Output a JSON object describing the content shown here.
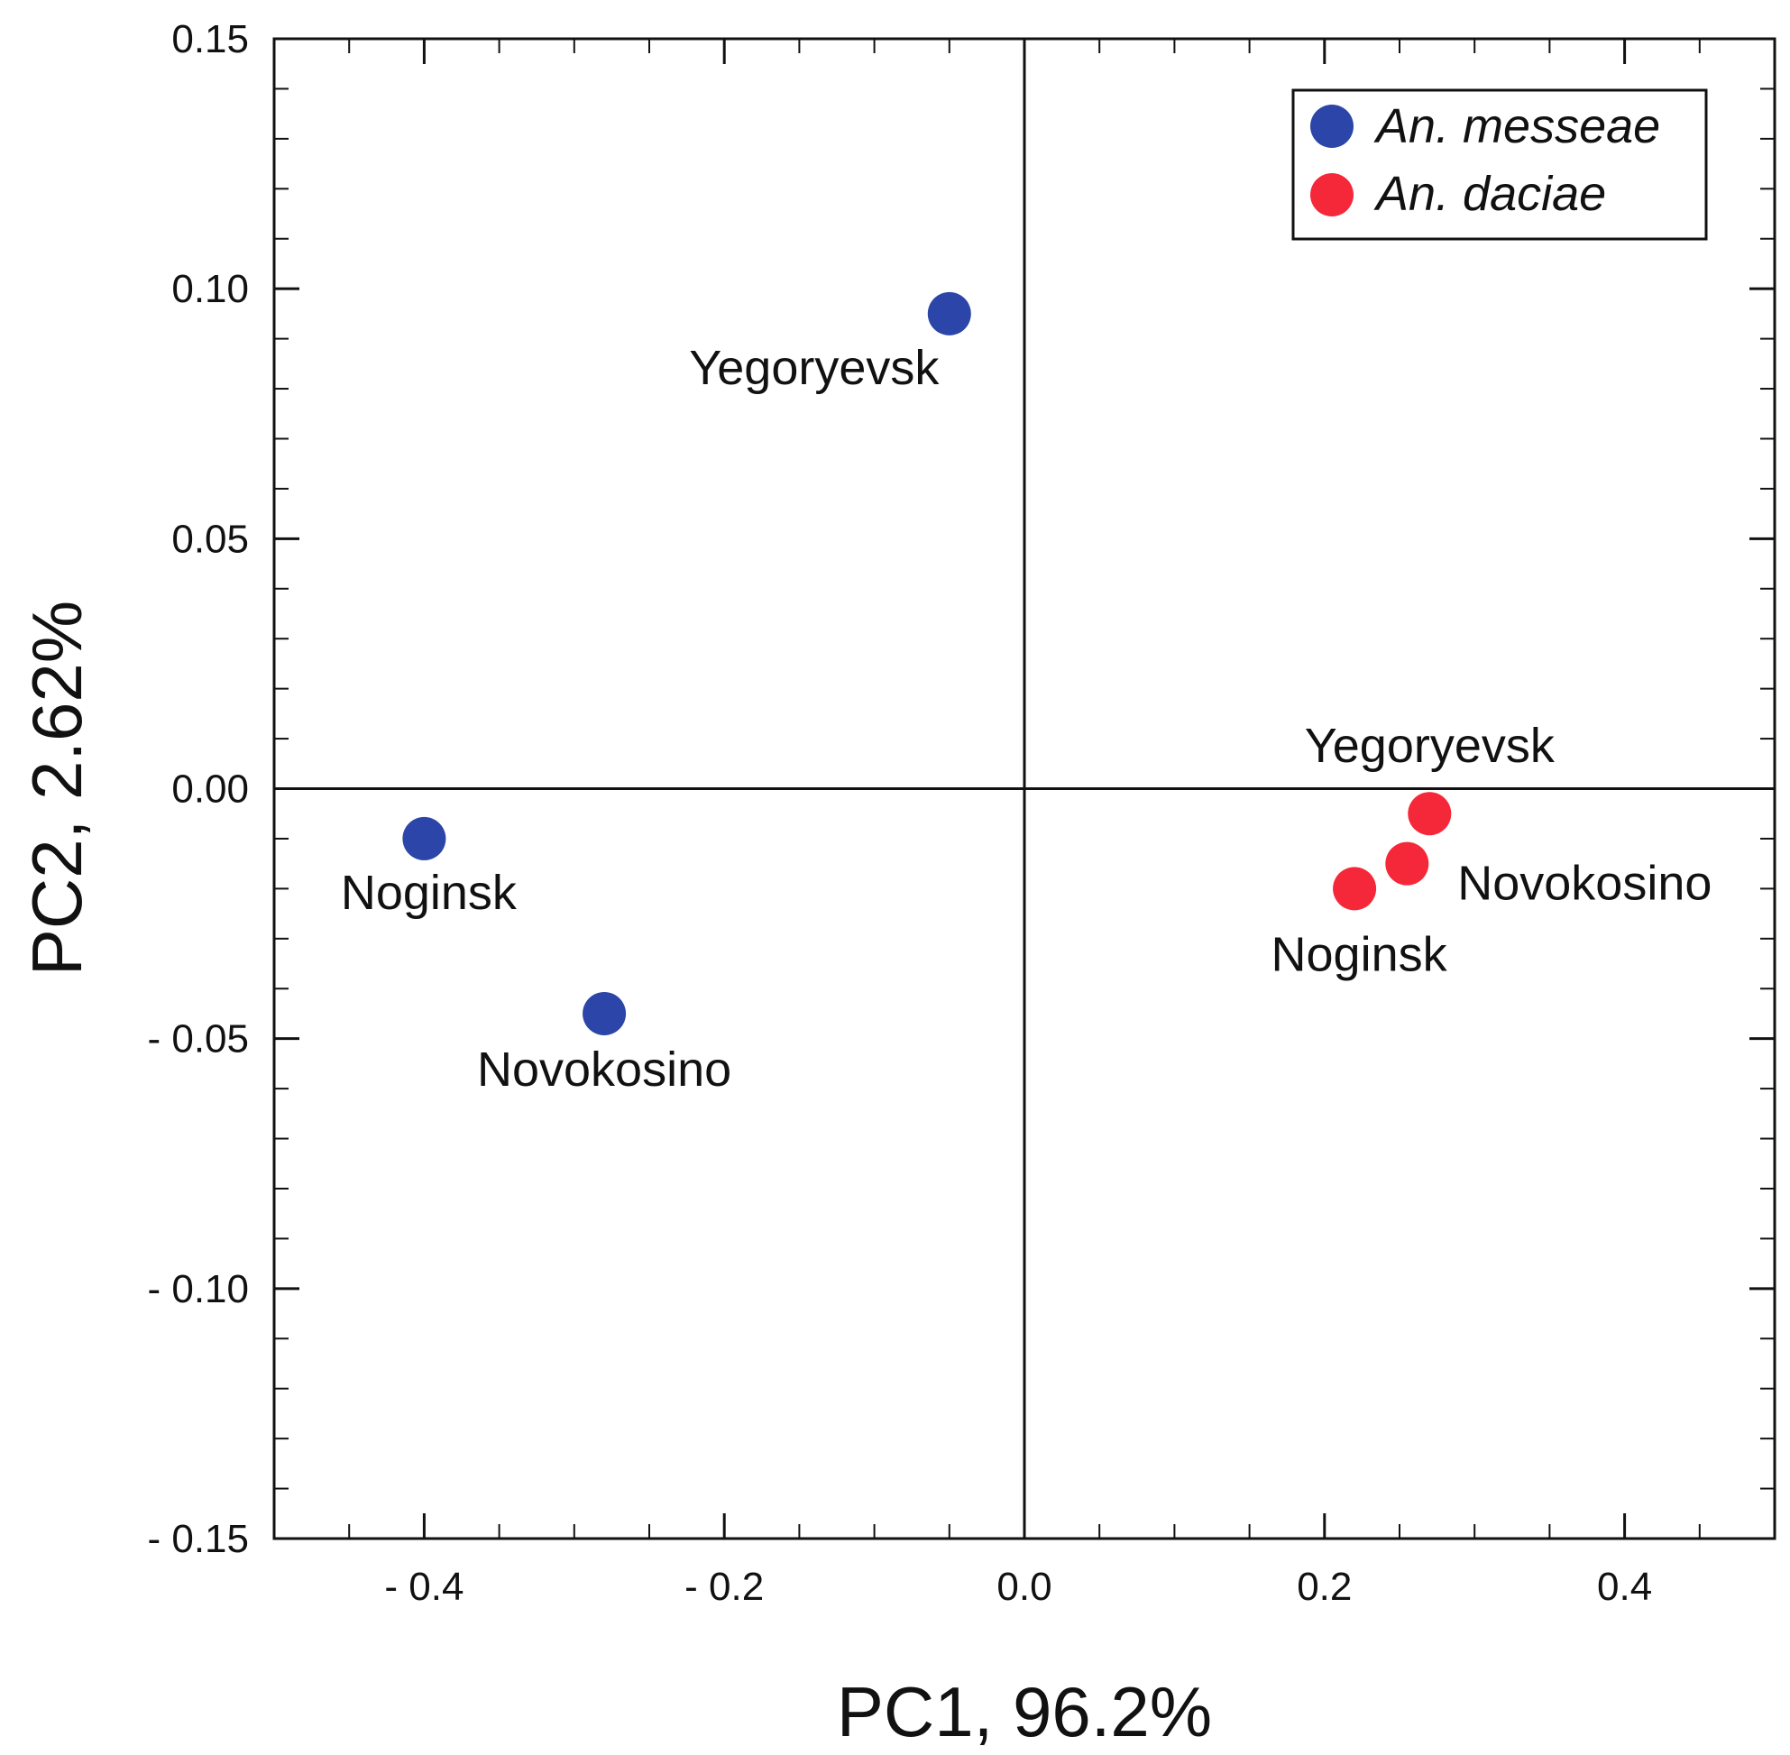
{
  "chart_data": {
    "type": "scatter",
    "xlabel": "PC1, 96.2%",
    "ylabel": "PC2, 2.62%",
    "xlim": [
      -0.5,
      0.5
    ],
    "ylim": [
      -0.15,
      0.15
    ],
    "x_ticks": [
      -0.4,
      -0.2,
      0.0,
      0.2,
      0.4
    ],
    "x_tick_labels": [
      "- 0.4",
      "- 0.2",
      "0.0",
      "0.2",
      "0.4"
    ],
    "y_ticks": [
      0.15,
      0.1,
      0.05,
      0.0,
      -0.05,
      -0.1,
      -0.15
    ],
    "y_tick_labels": [
      "0.15",
      "0.10",
      "0.05",
      "0.00",
      "- 0.05",
      "- 0.10",
      "- 0.15"
    ],
    "zero_lines": true,
    "legend_position": "top-right",
    "series": [
      {
        "name": "An. messeae",
        "color": "#2b45a8",
        "points": [
          {
            "label": "Yegoryevsk",
            "x": -0.05,
            "y": 0.095
          },
          {
            "label": "Noginsk",
            "x": -0.4,
            "y": -0.01
          },
          {
            "label": "Novokosino",
            "x": -0.28,
            "y": -0.045
          }
        ]
      },
      {
        "name": "An. daciae",
        "color": "#f5283a",
        "points": [
          {
            "label": "Yegoryevsk",
            "x": 0.27,
            "y": -0.005
          },
          {
            "label": "Novokosino",
            "x": 0.255,
            "y": -0.015
          },
          {
            "label": "Noginsk",
            "x": 0.22,
            "y": -0.02
          }
        ]
      }
    ]
  }
}
